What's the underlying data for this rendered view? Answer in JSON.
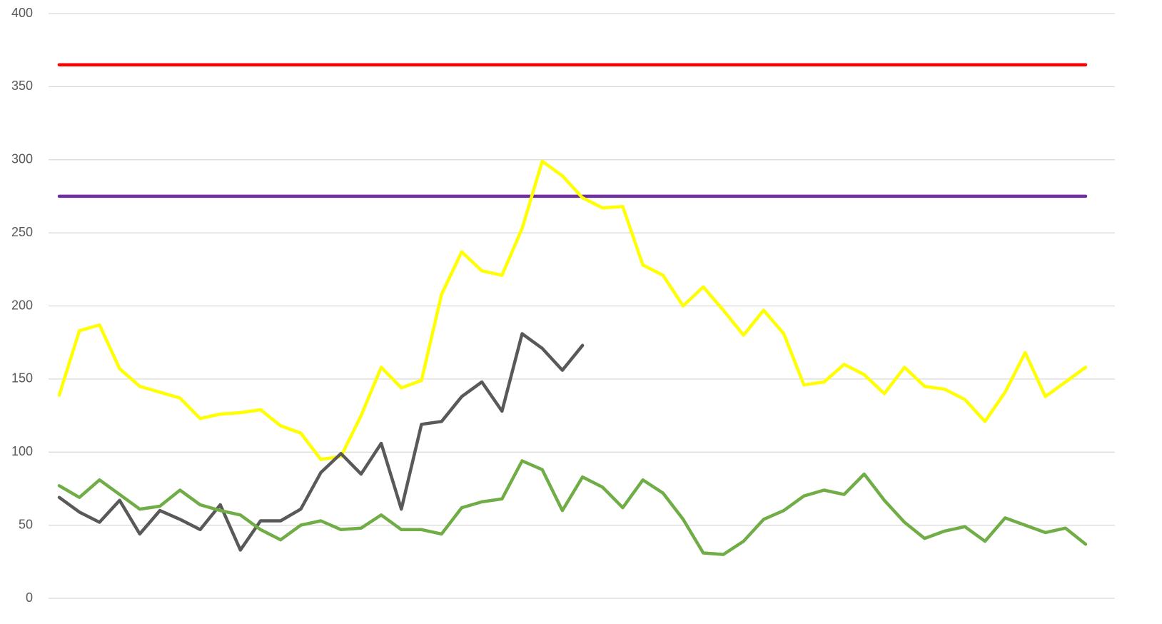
{
  "chart_data": {
    "type": "line",
    "categories": [
      null,
      null,
      null,
      null,
      null,
      null,
      null,
      null,
      null,
      null,
      null,
      null,
      null,
      null,
      null,
      null,
      null,
      null,
      null,
      null,
      null,
      null,
      null,
      null,
      null,
      null,
      null,
      null,
      null,
      null,
      null,
      null,
      null,
      null,
      null,
      null,
      null,
      null,
      null,
      null,
      null,
      null,
      null,
      null,
      null,
      null,
      null,
      null,
      null,
      null,
      null,
      null
    ],
    "series": [
      {
        "color": "#ff0000",
        "values": [
          365,
          365,
          365,
          365,
          365,
          365,
          365,
          365,
          365,
          365,
          365,
          365,
          365,
          365,
          365,
          365,
          365,
          365,
          365,
          365,
          365,
          365,
          365,
          365,
          365,
          365,
          365,
          365,
          365,
          365,
          365,
          365,
          365,
          365,
          365,
          365,
          365,
          365,
          365,
          365,
          365,
          365,
          365,
          365,
          365,
          365,
          365,
          365,
          365,
          365,
          365,
          365
        ]
      },
      {
        "color": "#7030a0",
        "values": [
          275,
          275,
          275,
          275,
          275,
          275,
          275,
          275,
          275,
          275,
          275,
          275,
          275,
          275,
          275,
          275,
          275,
          275,
          275,
          275,
          275,
          275,
          275,
          275,
          275,
          275,
          275,
          275,
          275,
          275,
          275,
          275,
          275,
          275,
          275,
          275,
          275,
          275,
          275,
          275,
          275,
          275,
          275,
          275,
          275,
          275,
          275,
          275,
          275,
          275,
          275,
          275
        ]
      },
      {
        "color": "#ffff00",
        "values": [
          139,
          183,
          187,
          157,
          145,
          141,
          137,
          123,
          126,
          127,
          129,
          118,
          113,
          95,
          97,
          125,
          158,
          144,
          149,
          208,
          237,
          224,
          221,
          253,
          299,
          289,
          274,
          267,
          268,
          228,
          221,
          200,
          213,
          197,
          180,
          197,
          181,
          146,
          148,
          160,
          153,
          140,
          158,
          145,
          143,
          136,
          121,
          141,
          168,
          138,
          148,
          158
        ]
      },
      {
        "color": "#595959",
        "values": [
          69,
          59,
          52,
          67,
          44,
          60,
          54,
          47,
          64,
          33,
          53,
          53,
          61,
          86,
          99,
          85,
          106,
          61,
          119,
          121,
          138,
          148,
          128,
          181,
          171,
          156,
          173,
          null,
          null,
          null,
          null,
          null,
          null,
          null,
          null,
          null,
          null,
          null,
          null,
          null,
          null,
          null,
          null,
          null,
          null,
          null,
          null,
          null,
          null,
          null,
          null,
          null
        ]
      },
      {
        "color": "#70ad47",
        "values": [
          77,
          69,
          81,
          71,
          61,
          63,
          74,
          64,
          60,
          57,
          47,
          40,
          50,
          53,
          47,
          48,
          57,
          47,
          47,
          44,
          62,
          66,
          68,
          94,
          88,
          60,
          83,
          76,
          62,
          81,
          72,
          54,
          31,
          30,
          39,
          54,
          60,
          70,
          74,
          71,
          85,
          67,
          52,
          41,
          46,
          49,
          39,
          55,
          50,
          45,
          48,
          37
        ]
      }
    ],
    "ylim": [
      0,
      400
    ],
    "yticks": [
      0,
      50,
      100,
      150,
      200,
      250,
      300,
      350,
      400
    ],
    "grid": true
  }
}
